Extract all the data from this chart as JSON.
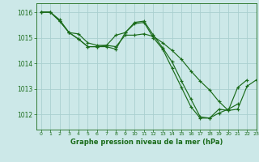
{
  "title": "Graphe pression niveau de la mer (hPa)",
  "background_color": "#cce8e8",
  "grid_color": "#aacfcf",
  "line_color": "#1a6b1a",
  "xlim": [
    -0.5,
    23
  ],
  "ylim": [
    1011.4,
    1016.35
  ],
  "yticks": [
    1012,
    1013,
    1014,
    1015,
    1016
  ],
  "xticks": [
    0,
    1,
    2,
    3,
    4,
    5,
    6,
    7,
    8,
    9,
    10,
    11,
    12,
    13,
    14,
    15,
    16,
    17,
    18,
    19,
    20,
    21,
    22,
    23
  ],
  "series": [
    [
      1016.0,
      1016.0,
      1015.7,
      1015.2,
      1015.15,
      1014.8,
      1014.7,
      1014.7,
      1014.65,
      1015.1,
      1015.1,
      1015.15,
      1015.05,
      1014.8,
      1014.5,
      1014.15,
      1013.7,
      1013.3,
      1012.95,
      1012.5,
      1012.15,
      1012.2,
      1013.1,
      1013.35
    ],
    [
      1016.0,
      1016.0,
      1015.65,
      1015.2,
      1014.95,
      1014.65,
      1014.65,
      1014.65,
      1014.55,
      1015.2,
      1015.55,
      1015.6,
      1015.0,
      1014.55,
      1013.8,
      1013.05,
      1012.3,
      1011.85,
      1011.85,
      1012.2,
      1012.15,
      1013.05,
      1013.35,
      null
    ],
    [
      1016.0,
      1016.0,
      1015.65,
      1015.2,
      1014.95,
      1014.65,
      1014.65,
      1014.7,
      1015.1,
      1015.2,
      1015.6,
      1015.65,
      1015.1,
      1014.6,
      1014.05,
      1013.3,
      1012.6,
      1011.9,
      1011.85,
      1012.05,
      1012.2,
      1012.4,
      null,
      null
    ]
  ]
}
